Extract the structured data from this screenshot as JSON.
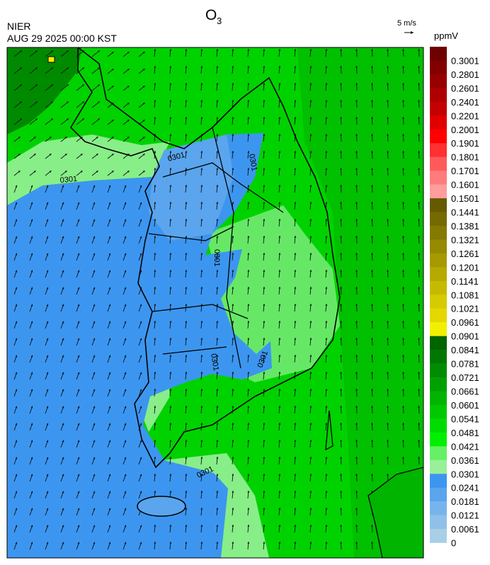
{
  "header": {
    "title": "O",
    "title_sub": "3",
    "source": "NIER",
    "datetime": "AUG 29 2025 00:00 KST",
    "wind_scale": "5 m/s"
  },
  "colorbar": {
    "unit": "ppmV",
    "labels": [
      "0.3001",
      "0.2801",
      "0.2601",
      "0.2401",
      "0.2201",
      "0.2001",
      "0.1901",
      "0.1801",
      "0.1701",
      "0.1601",
      "0.1501",
      "0.1441",
      "0.1381",
      "0.1321",
      "0.1261",
      "0.1201",
      "0.1141",
      "0.1081",
      "0.1021",
      "0.0961",
      "0.0901",
      "0.0841",
      "0.0781",
      "0.0721",
      "0.0661",
      "0.0601",
      "0.0541",
      "0.0481",
      "0.0421",
      "0.0361",
      "0.0301",
      "0.0241",
      "0.0181",
      "0.0121",
      "0.0061",
      "0"
    ],
    "colors": [
      "#6e0000",
      "#820000",
      "#980000",
      "#ae0000",
      "#c40000",
      "#e00000",
      "#ff0000",
      "#ff3030",
      "#ff5a5a",
      "#ff7c7c",
      "#ff9c9c",
      "#655a00",
      "#746a00",
      "#857a00",
      "#958a00",
      "#a69a00",
      "#b6aa00",
      "#c6ba00",
      "#d6ca00",
      "#e4d800",
      "#f2f000",
      "#006400",
      "#007800",
      "#008c00",
      "#00a000",
      "#00b400",
      "#00c800",
      "#00dc00",
      "#00f000",
      "#66f066",
      "#99f099",
      "#3c96f0",
      "#5aa5ee",
      "#78b4ec",
      "#8fc0e8",
      "#a8cfe6"
    ]
  },
  "map": {
    "contour_labels": [
      "0301",
      "0301",
      "0301",
      "0301",
      "0301",
      "0301",
      "0301"
    ]
  }
}
